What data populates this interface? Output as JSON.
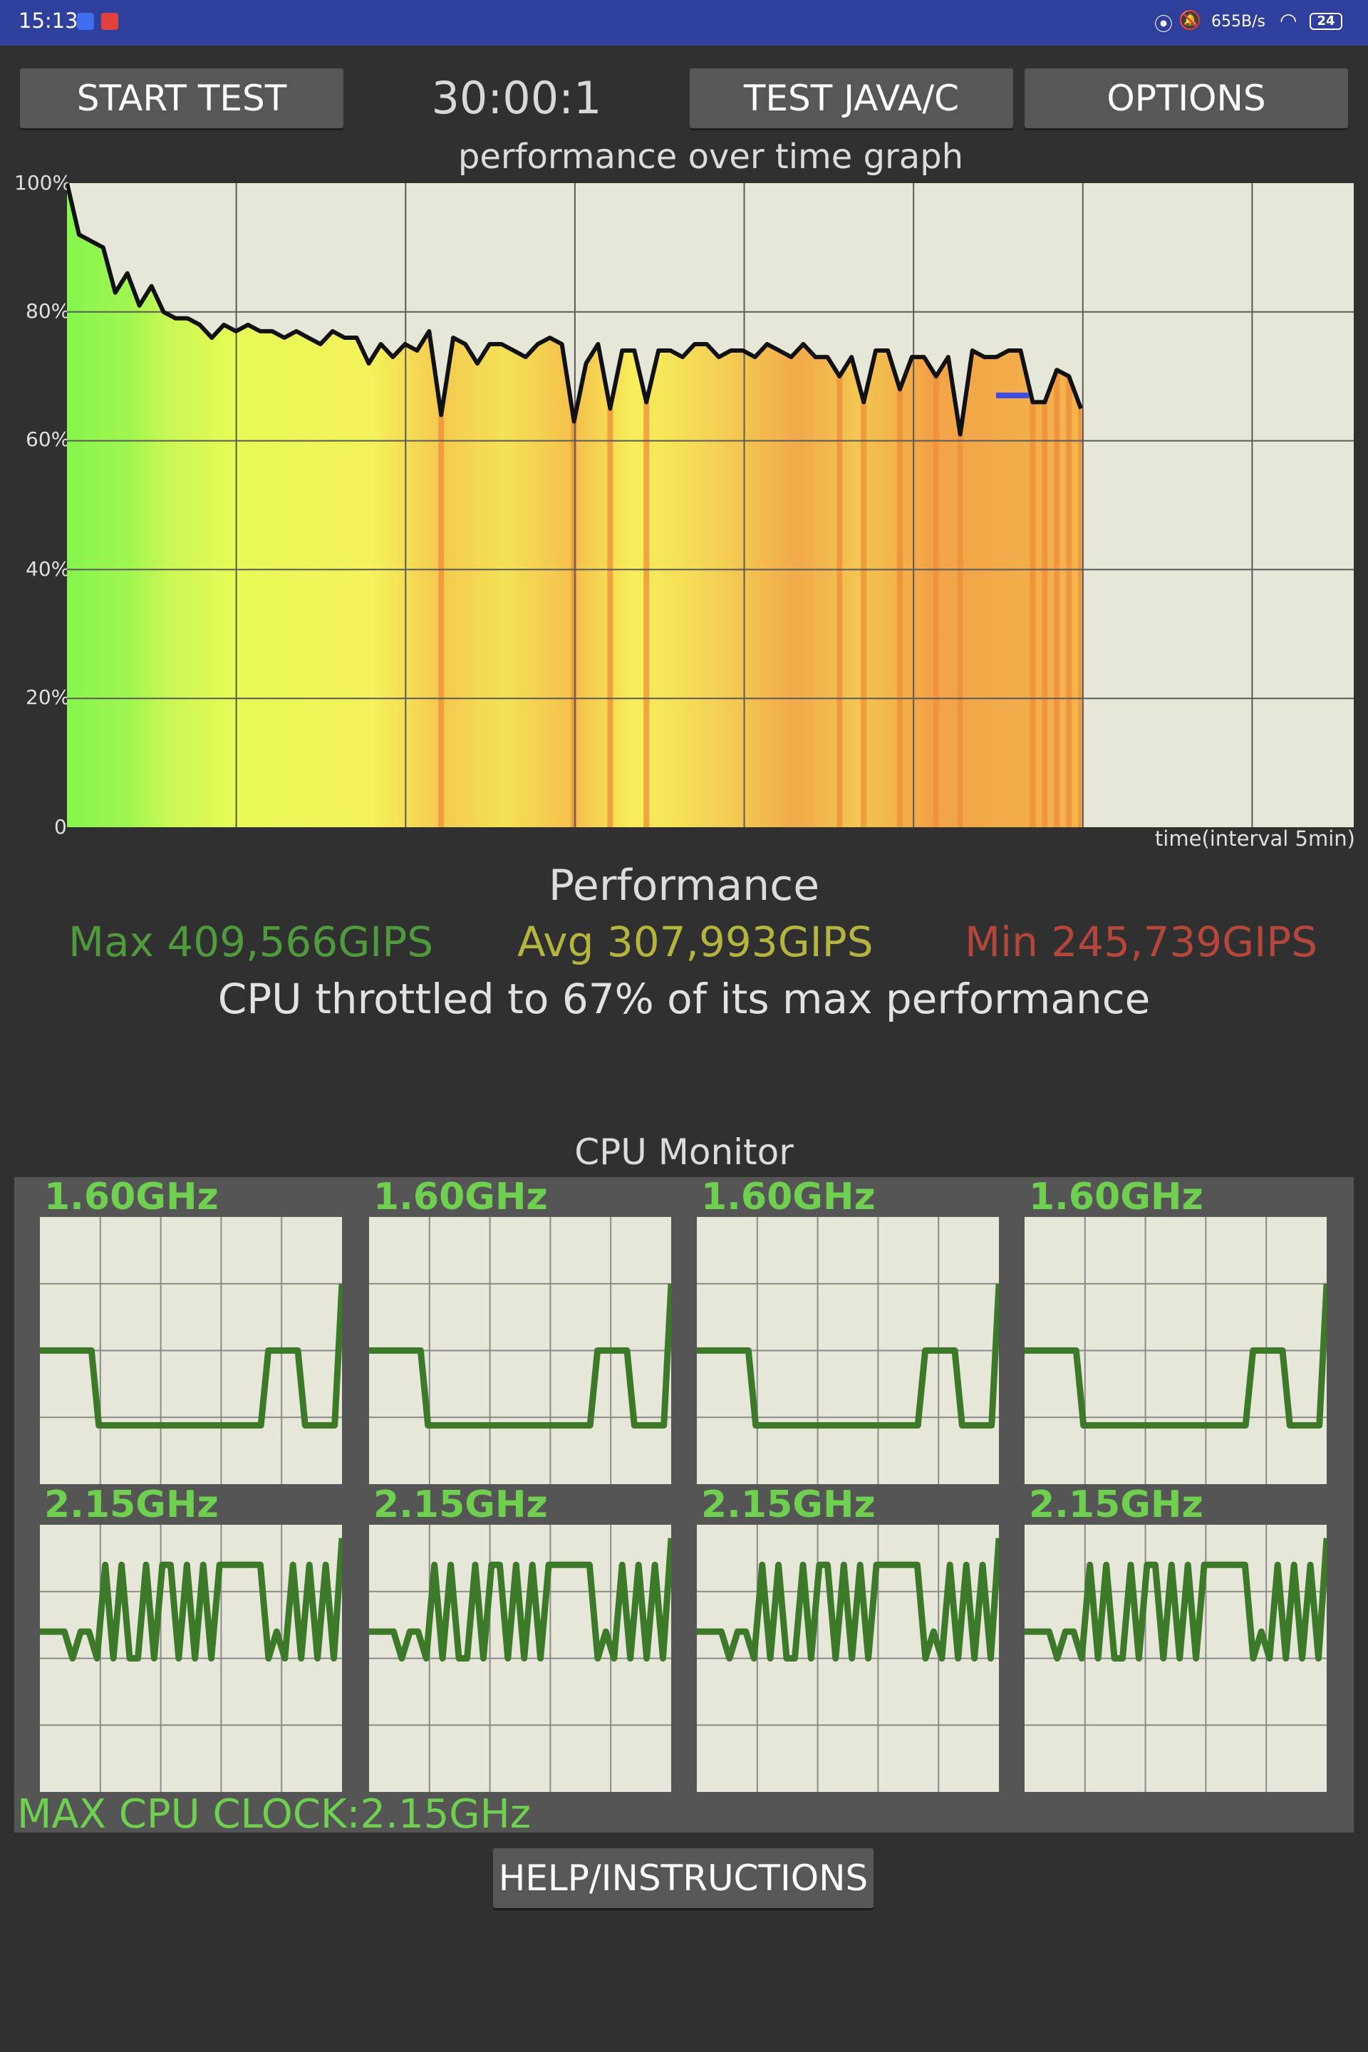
{
  "status_bar": {
    "time": "15:13",
    "net_rate": "655B/s",
    "battery": "24"
  },
  "toolbar": {
    "start_label": "START TEST",
    "timer": "30:00:1",
    "java_label": "TEST JAVA/C",
    "options_label": "OPTIONS"
  },
  "graph": {
    "title": "performance over time graph",
    "x_label": "time(interval 5min)",
    "y_ticks": [
      "100%",
      "80%",
      "60%",
      "40%",
      "20%",
      "0"
    ]
  },
  "chart_data": {
    "type": "line",
    "title": "performance over time graph",
    "xlabel": "time(interval 5min)",
    "ylabel": "",
    "ylim": [
      0,
      100
    ],
    "xlim": [
      0,
      30
    ],
    "grid": true,
    "series": [
      {
        "values": [
          100,
          92,
          91,
          90,
          83,
          86,
          81,
          84,
          80,
          79,
          79,
          78,
          76,
          78,
          77,
          78,
          77,
          77,
          76,
          77,
          76,
          75,
          77,
          76,
          76,
          72,
          75,
          73,
          75,
          74,
          77,
          64,
          76,
          75,
          72,
          75,
          75,
          74,
          73,
          75,
          76,
          75,
          63,
          72,
          75,
          65,
          74,
          74,
          66,
          74,
          74,
          73,
          75,
          75,
          73,
          74,
          74,
          73,
          75,
          74,
          73,
          75,
          73,
          73,
          70,
          73,
          66,
          74,
          74,
          68,
          73,
          73,
          70,
          73,
          61,
          74,
          73,
          73,
          74,
          74,
          66,
          66,
          71,
          70,
          65
        ]
      }
    ]
  },
  "performance": {
    "title": "Performance",
    "max": "Max 409,566GIPS",
    "avg": "Avg 307,993GIPS",
    "min": "Min 245,739GIPS",
    "throttle": "CPU throttled to 67% of its max performance",
    "colors": {
      "max": "#4f9a3c",
      "avg": "#b5b43f",
      "min": "#b5463c"
    }
  },
  "cpu_monitor": {
    "title": "CPU Monitor",
    "cores": [
      {
        "clock": "1.60GHz"
      },
      {
        "clock": "1.60GHz"
      },
      {
        "clock": "1.60GHz"
      },
      {
        "clock": "1.60GHz"
      },
      {
        "clock": "2.15GHz"
      },
      {
        "clock": "2.15GHz"
      },
      {
        "clock": "2.15GHz"
      },
      {
        "clock": "2.15GHz"
      }
    ],
    "little_trace": [
      0.5,
      0.5,
      0.5,
      0.5,
      0.5,
      0.5,
      0.5,
      0.5,
      0.78,
      0.78,
      0.78,
      0.78,
      0.78,
      0.78,
      0.78,
      0.78,
      0.78,
      0.78,
      0.78,
      0.78,
      0.78,
      0.78,
      0.78,
      0.78,
      0.78,
      0.78,
      0.78,
      0.78,
      0.78,
      0.78,
      0.78,
      0.5,
      0.5,
      0.5,
      0.5,
      0.5,
      0.78,
      0.78,
      0.78,
      0.78,
      0.78,
      0.25
    ],
    "big_trace": [
      0.4,
      0.4,
      0.4,
      0.4,
      0.5,
      0.4,
      0.4,
      0.5,
      0.15,
      0.5,
      0.15,
      0.5,
      0.5,
      0.15,
      0.5,
      0.15,
      0.15,
      0.5,
      0.15,
      0.5,
      0.15,
      0.5,
      0.15,
      0.15,
      0.15,
      0.15,
      0.15,
      0.15,
      0.5,
      0.4,
      0.5,
      0.15,
      0.5,
      0.15,
      0.5,
      0.15,
      0.5,
      0.05
    ],
    "max_clock": "MAX CPU CLOCK:2.15GHz",
    "line_color": "#3c7a2a"
  },
  "help_label": "HELP/INSTRUCTIONS"
}
